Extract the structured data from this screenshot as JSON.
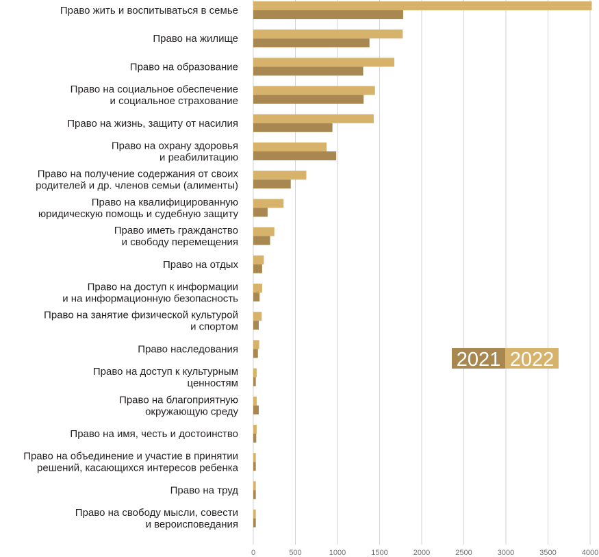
{
  "chart_data": {
    "type": "bar",
    "orientation": "horizontal",
    "categories": [
      [
        "Право жить и воспитываться в семье"
      ],
      [
        "Право на жилище"
      ],
      [
        "Право на образование"
      ],
      [
        "Право на социальное обеспечение",
        "и социальное страхование"
      ],
      [
        "Право на жизнь, защиту от насилия"
      ],
      [
        "Право на охрану здоровья",
        "и реабилитацию"
      ],
      [
        "Право на получение содержания от своих",
        "родителей и др. членов семьи (алименты)"
      ],
      [
        "Право на квалифицированную",
        "юридическую помощь и судебную защиту"
      ],
      [
        "Право иметь гражданство",
        "и свободу перемещения"
      ],
      [
        "Право на отдых"
      ],
      [
        "Право на доступ к информации",
        "и на информационную безопасность"
      ],
      [
        "Право на занятие физической культурой",
        "и спортом"
      ],
      [
        "Право наследования"
      ],
      [
        "Право на доступ к культурным",
        "ценностям"
      ],
      [
        "Право на благоприятную",
        "окружающую среду"
      ],
      [
        "Право на имя, честь и достоинство"
      ],
      [
        "Право на объединение и участие в принятии",
        "решений, касающихся интересов ребенка"
      ],
      [
        "Право на труд"
      ],
      [
        "Право на свободу мысли, совести",
        "и вероисповедания"
      ]
    ],
    "series": [
      {
        "name": "2022",
        "color": "#d6b26b",
        "values": [
          4020,
          1775,
          1675,
          1445,
          1430,
          870,
          630,
          360,
          250,
          125,
          105,
          100,
          70,
          40,
          40,
          40,
          30,
          30,
          30
        ]
      },
      {
        "name": "2021",
        "color": "#a88850",
        "values": [
          1780,
          1380,
          1305,
          1310,
          940,
          985,
          445,
          170,
          200,
          105,
          75,
          65,
          55,
          30,
          65,
          35,
          30,
          30,
          30
        ]
      }
    ],
    "xlim": [
      0,
      4000
    ],
    "xticks": [
      "0",
      "500",
      "1000",
      "1500",
      "2000",
      "2500",
      "3000",
      "3500",
      "4000"
    ],
    "grid": true,
    "legend_position": "right-middle"
  }
}
